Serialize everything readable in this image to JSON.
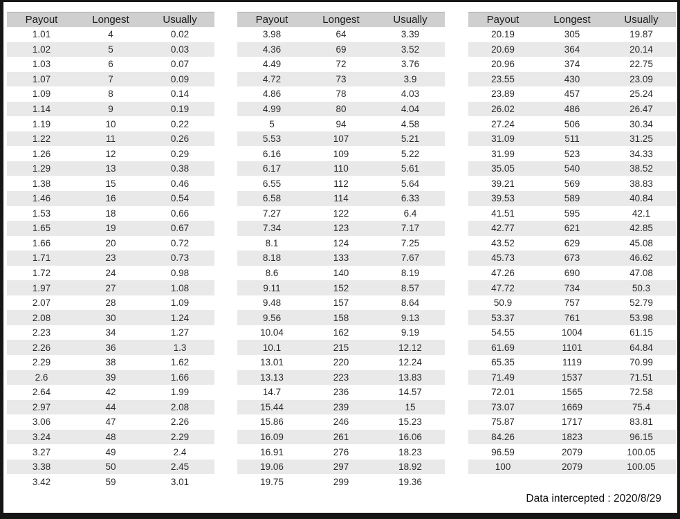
{
  "columns": [
    "Payout",
    "Longest",
    "Usually"
  ],
  "footer": {
    "text": "Data intercepted : 2020/8/29"
  },
  "colors": {
    "header_bg": "#cfcfcf",
    "stripe_bg": "#e9e9e9",
    "frame": "#161616",
    "text": "#2b2b2b"
  },
  "tables": [
    {
      "name": "payout-table-1",
      "rows": [
        [
          "1.01",
          "4",
          "0.02"
        ],
        [
          "1.02",
          "5",
          "0.03"
        ],
        [
          "1.03",
          "6",
          "0.07"
        ],
        [
          "1.07",
          "7",
          "0.09"
        ],
        [
          "1.09",
          "8",
          "0.14"
        ],
        [
          "1.14",
          "9",
          "0.19"
        ],
        [
          "1.19",
          "10",
          "0.22"
        ],
        [
          "1.22",
          "11",
          "0.26"
        ],
        [
          "1.26",
          "12",
          "0.29"
        ],
        [
          "1.29",
          "13",
          "0.38"
        ],
        [
          "1.38",
          "15",
          "0.46"
        ],
        [
          "1.46",
          "16",
          "0.54"
        ],
        [
          "1.53",
          "18",
          "0.66"
        ],
        [
          "1.65",
          "19",
          "0.67"
        ],
        [
          "1.66",
          "20",
          "0.72"
        ],
        [
          "1.71",
          "23",
          "0.73"
        ],
        [
          "1.72",
          "24",
          "0.98"
        ],
        [
          "1.97",
          "27",
          "1.08"
        ],
        [
          "2.07",
          "28",
          "1.09"
        ],
        [
          "2.08",
          "30",
          "1.24"
        ],
        [
          "2.23",
          "34",
          "1.27"
        ],
        [
          "2.26",
          "36",
          "1.3"
        ],
        [
          "2.29",
          "38",
          "1.62"
        ],
        [
          "2.6",
          "39",
          "1.66"
        ],
        [
          "2.64",
          "42",
          "1.99"
        ],
        [
          "2.97",
          "44",
          "2.08"
        ],
        [
          "3.06",
          "47",
          "2.26"
        ],
        [
          "3.24",
          "48",
          "2.29"
        ],
        [
          "3.27",
          "49",
          "2.4"
        ],
        [
          "3.38",
          "50",
          "2.45"
        ],
        [
          "3.42",
          "59",
          "3.01"
        ]
      ]
    },
    {
      "name": "payout-table-2",
      "rows": [
        [
          "3.98",
          "64",
          "3.39"
        ],
        [
          "4.36",
          "69",
          "3.52"
        ],
        [
          "4.49",
          "72",
          "3.76"
        ],
        [
          "4.72",
          "73",
          "3.9"
        ],
        [
          "4.86",
          "78",
          "4.03"
        ],
        [
          "4.99",
          "80",
          "4.04"
        ],
        [
          "5",
          "94",
          "4.58"
        ],
        [
          "5.53",
          "107",
          "5.21"
        ],
        [
          "6.16",
          "109",
          "5.22"
        ],
        [
          "6.17",
          "110",
          "5.61"
        ],
        [
          "6.55",
          "112",
          "5.64"
        ],
        [
          "6.58",
          "114",
          "6.33"
        ],
        [
          "7.27",
          "122",
          "6.4"
        ],
        [
          "7.34",
          "123",
          "7.17"
        ],
        [
          "8.1",
          "124",
          "7.25"
        ],
        [
          "8.18",
          "133",
          "7.67"
        ],
        [
          "8.6",
          "140",
          "8.19"
        ],
        [
          "9.11",
          "152",
          "8.57"
        ],
        [
          "9.48",
          "157",
          "8.64"
        ],
        [
          "9.56",
          "158",
          "9.13"
        ],
        [
          "10.04",
          "162",
          "9.19"
        ],
        [
          "10.1",
          "215",
          "12.12"
        ],
        [
          "13.01",
          "220",
          "12.24"
        ],
        [
          "13.13",
          "223",
          "13.83"
        ],
        [
          "14.7",
          "236",
          "14.57"
        ],
        [
          "15.44",
          "239",
          "15"
        ],
        [
          "15.86",
          "246",
          "15.23"
        ],
        [
          "16.09",
          "261",
          "16.06"
        ],
        [
          "16.91",
          "276",
          "18.23"
        ],
        [
          "19.06",
          "297",
          "18.92"
        ],
        [
          "19.75",
          "299",
          "19.36"
        ]
      ]
    },
    {
      "name": "payout-table-3",
      "rows": [
        [
          "20.19",
          "305",
          "19.87"
        ],
        [
          "20.69",
          "364",
          "20.14"
        ],
        [
          "20.96",
          "374",
          "22.75"
        ],
        [
          "23.55",
          "430",
          "23.09"
        ],
        [
          "23.89",
          "457",
          "25.24"
        ],
        [
          "26.02",
          "486",
          "26.47"
        ],
        [
          "27.24",
          "506",
          "30.34"
        ],
        [
          "31.09",
          "511",
          "31.25"
        ],
        [
          "31.99",
          "523",
          "34.33"
        ],
        [
          "35.05",
          "540",
          "38.52"
        ],
        [
          "39.21",
          "569",
          "38.83"
        ],
        [
          "39.53",
          "589",
          "40.84"
        ],
        [
          "41.51",
          "595",
          "42.1"
        ],
        [
          "42.77",
          "621",
          "42.85"
        ],
        [
          "43.52",
          "629",
          "45.08"
        ],
        [
          "45.73",
          "673",
          "46.62"
        ],
        [
          "47.26",
          "690",
          "47.08"
        ],
        [
          "47.72",
          "734",
          "50.3"
        ],
        [
          "50.9",
          "757",
          "52.79"
        ],
        [
          "53.37",
          "761",
          "53.98"
        ],
        [
          "54.55",
          "1004",
          "61.15"
        ],
        [
          "61.69",
          "1101",
          "64.84"
        ],
        [
          "65.35",
          "1119",
          "70.99"
        ],
        [
          "71.49",
          "1537",
          "71.51"
        ],
        [
          "72.01",
          "1565",
          "72.58"
        ],
        [
          "73.07",
          "1669",
          "75.4"
        ],
        [
          "75.87",
          "1717",
          "83.81"
        ],
        [
          "84.26",
          "1823",
          "96.15"
        ],
        [
          "96.59",
          "2079",
          "100.05"
        ],
        [
          "100",
          "2079",
          "100.05"
        ]
      ]
    }
  ]
}
